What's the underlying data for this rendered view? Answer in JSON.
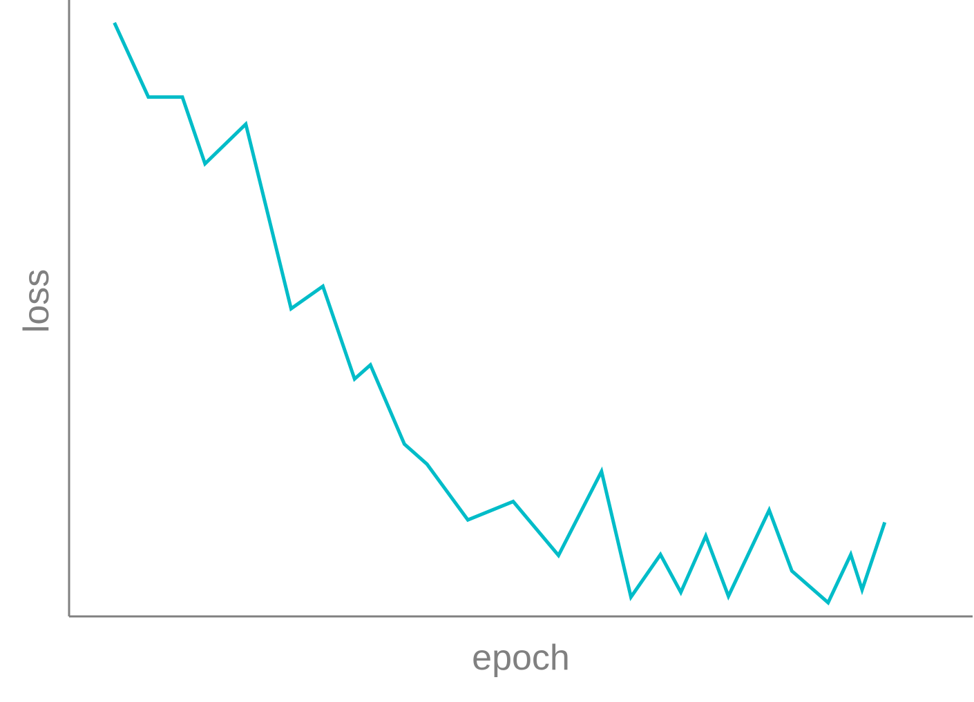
{
  "chart_data": {
    "type": "line",
    "title": "",
    "xlabel": "epoch",
    "ylabel": "loss",
    "grid": false,
    "legend": "none",
    "xlim": [
      0,
      39
    ],
    "ylim": [
      0,
      1
    ],
    "series": [
      {
        "color": "#00bcc8",
        "points": [
          {
            "x": 2.0,
            "y": 0.9632
          },
          {
            "x": 3.5,
            "y": 0.8426
          },
          {
            "x": 5.0,
            "y": 0.8426
          },
          {
            "x": 6.0,
            "y": 0.7344
          },
          {
            "x": 7.8,
            "y": 0.7987
          },
          {
            "x": 9.8,
            "y": 0.4992
          },
          {
            "x": 11.2,
            "y": 0.5356
          },
          {
            "x": 12.6,
            "y": 0.3852
          },
          {
            "x": 13.3,
            "y": 0.4079
          },
          {
            "x": 14.8,
            "y": 0.2795
          },
          {
            "x": 15.8,
            "y": 0.2469
          },
          {
            "x": 17.6,
            "y": 0.1566
          },
          {
            "x": 19.6,
            "y": 0.1864
          },
          {
            "x": 21.6,
            "y": 0.099
          },
          {
            "x": 23.5,
            "y": 0.2352
          },
          {
            "x": 24.8,
            "y": 0.0315
          },
          {
            "x": 26.1,
            "y": 0.1003
          },
          {
            "x": 27.0,
            "y": 0.0391
          },
          {
            "x": 28.1,
            "y": 0.1305
          },
          {
            "x": 29.1,
            "y": 0.0328
          },
          {
            "x": 30.9,
            "y": 0.1724
          },
          {
            "x": 31.9,
            "y": 0.0738
          },
          {
            "x": 33.5,
            "y": 0.0224
          },
          {
            "x": 34.5,
            "y": 0.1003
          },
          {
            "x": 35.0,
            "y": 0.0432
          },
          {
            "x": 36.0,
            "y": 0.1526
          }
        ]
      }
    ]
  }
}
